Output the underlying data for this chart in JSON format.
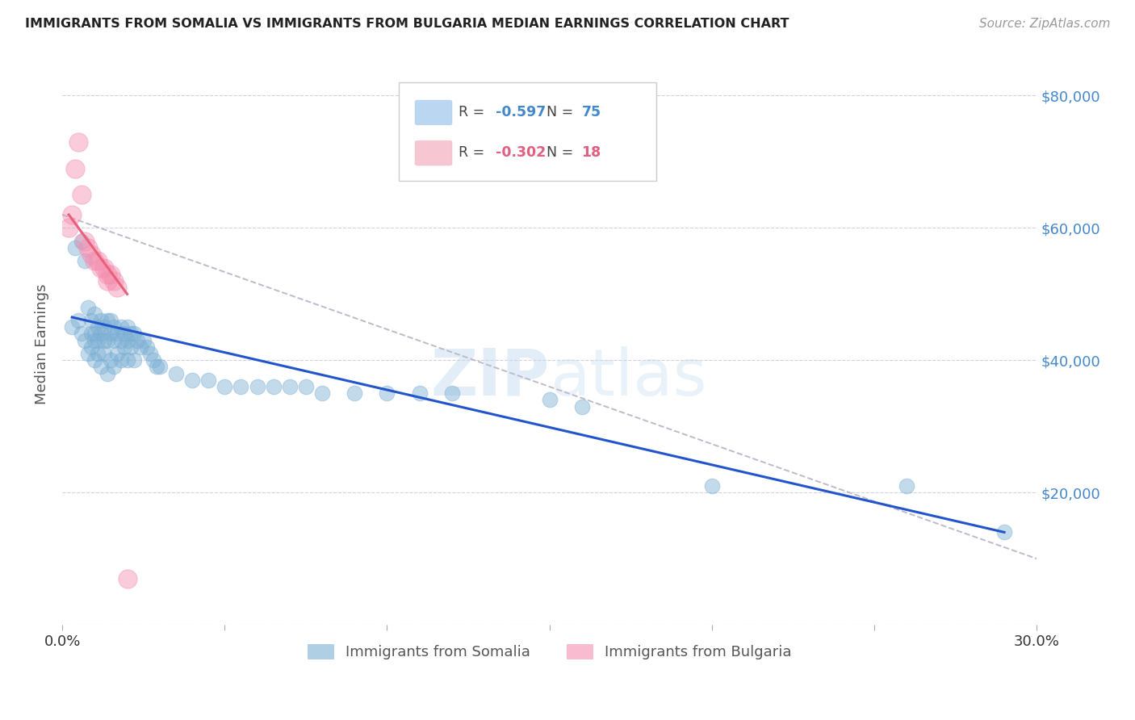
{
  "title": "IMMIGRANTS FROM SOMALIA VS IMMIGRANTS FROM BULGARIA MEDIAN EARNINGS CORRELATION CHART",
  "source": "Source: ZipAtlas.com",
  "ylabel": "Median Earnings",
  "xlim": [
    0.0,
    0.3
  ],
  "ylim": [
    0,
    85000
  ],
  "yticks": [
    0,
    20000,
    40000,
    60000,
    80000
  ],
  "ytick_labels": [
    "",
    "$20,000",
    "$40,000",
    "$60,000",
    "$80,000"
  ],
  "xticks": [
    0.0,
    0.05,
    0.1,
    0.15,
    0.2,
    0.25,
    0.3
  ],
  "background_color": "#ffffff",
  "somalia_color": "#7bafd4",
  "bulgaria_color": "#f48fb0",
  "somalia_line_color": "#2255cc",
  "bulgaria_line_color": "#e8607a",
  "dashed_line_color": "#bbbbcc",
  "legend_somalia_color": "#aaccee",
  "legend_bulgaria_color": "#f5b8c8",
  "somalia_points_x": [
    0.003,
    0.004,
    0.005,
    0.006,
    0.006,
    0.007,
    0.007,
    0.008,
    0.008,
    0.009,
    0.009,
    0.009,
    0.01,
    0.01,
    0.01,
    0.01,
    0.011,
    0.011,
    0.011,
    0.012,
    0.012,
    0.012,
    0.013,
    0.013,
    0.013,
    0.014,
    0.014,
    0.014,
    0.015,
    0.015,
    0.015,
    0.016,
    0.016,
    0.016,
    0.017,
    0.017,
    0.018,
    0.018,
    0.018,
    0.019,
    0.019,
    0.02,
    0.02,
    0.02,
    0.021,
    0.021,
    0.022,
    0.022,
    0.023,
    0.024,
    0.025,
    0.026,
    0.027,
    0.028,
    0.029,
    0.03,
    0.035,
    0.04,
    0.045,
    0.05,
    0.055,
    0.06,
    0.065,
    0.07,
    0.075,
    0.08,
    0.09,
    0.1,
    0.11,
    0.12,
    0.15,
    0.16,
    0.2,
    0.26,
    0.29
  ],
  "somalia_points_y": [
    45000,
    57000,
    46000,
    44000,
    58000,
    55000,
    43000,
    48000,
    41000,
    46000,
    44000,
    42000,
    47000,
    44000,
    43000,
    40000,
    45000,
    43000,
    41000,
    46000,
    44000,
    39000,
    45000,
    43000,
    41000,
    46000,
    43000,
    38000,
    46000,
    44000,
    40000,
    45000,
    43000,
    39000,
    44000,
    41000,
    45000,
    43000,
    40000,
    44000,
    42000,
    45000,
    43000,
    40000,
    44000,
    42000,
    44000,
    40000,
    43000,
    42000,
    43000,
    42000,
    41000,
    40000,
    39000,
    39000,
    38000,
    37000,
    37000,
    36000,
    36000,
    36000,
    36000,
    36000,
    36000,
    35000,
    35000,
    35000,
    35000,
    35000,
    34000,
    33000,
    21000,
    21000,
    14000
  ],
  "bulgaria_points_x": [
    0.002,
    0.003,
    0.004,
    0.005,
    0.006,
    0.007,
    0.008,
    0.009,
    0.01,
    0.011,
    0.012,
    0.013,
    0.014,
    0.014,
    0.015,
    0.016,
    0.017,
    0.02
  ],
  "bulgaria_points_y": [
    60000,
    62000,
    69000,
    73000,
    65000,
    58000,
    57000,
    56000,
    55000,
    55000,
    54000,
    54000,
    53000,
    52000,
    53000,
    52000,
    51000,
    7000
  ],
  "somalia_line_x": [
    0.003,
    0.29
  ],
  "somalia_line_y": [
    46500,
    14000
  ],
  "bulgaria_line_x": [
    0.002,
    0.02
  ],
  "bulgaria_line_y": [
    62000,
    50000
  ],
  "dashed_line_x": [
    0.0,
    0.3
  ],
  "dashed_line_y": [
    62000,
    10000
  ],
  "somalia_point_size": 180,
  "bulgaria_point_size": 280
}
